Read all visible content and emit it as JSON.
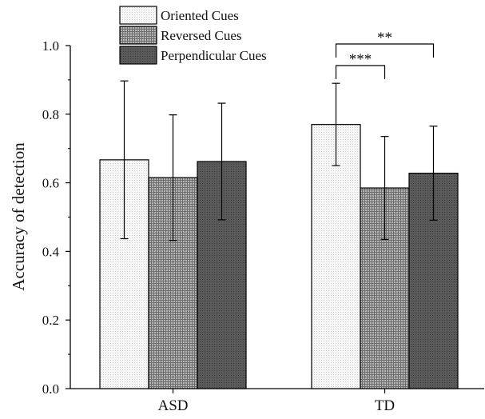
{
  "chart_data": {
    "type": "bar",
    "ylabel": "Accuracy of detection",
    "ylim": [
      0,
      1.0
    ],
    "yticks": [
      "0.0",
      "0.2",
      "0.4",
      "0.6",
      "0.8",
      "1.0"
    ],
    "categories": [
      "ASD",
      "TD"
    ],
    "legend_position": "top-left",
    "grid": false,
    "series": [
      {
        "name": "Oriented Cues",
        "values": [
          0.667,
          0.77
        ],
        "error": [
          0.23,
          0.12
        ],
        "color": "#f2f2f2",
        "pattern": "fine-dots"
      },
      {
        "name": "Reversed Cues",
        "values": [
          0.615,
          0.585
        ],
        "error": [
          0.183,
          0.15
        ],
        "color": "#9a9a9a",
        "pattern": "crosshatch"
      },
      {
        "name": "Perpendicular Cues",
        "values": [
          0.662,
          0.628
        ],
        "error": [
          0.17,
          0.137
        ],
        "color": "#555555",
        "pattern": "dark-dots"
      }
    ],
    "annotations": [
      {
        "category": "TD",
        "from": "Oriented Cues",
        "to": "Reversed Cues",
        "label": "***"
      },
      {
        "category": "TD",
        "from": "Oriented Cues",
        "to": "Perpendicular Cues",
        "label": "**"
      }
    ]
  }
}
